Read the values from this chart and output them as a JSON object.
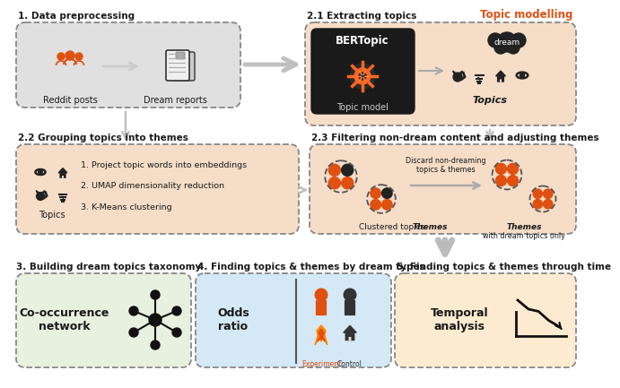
{
  "bg_color": "#ffffff",
  "peach_box_color": "#f5ddc8",
  "gray_box_color": "#e0e0e0",
  "green_box_color": "#e8f0e0",
  "blue_box_color": "#d4e8f5",
  "yellow_box_color": "#fcebd0",
  "orange_color": "#e05010",
  "dark_color": "#1a1a1a",
  "arrow_gray": "#aaaaaa",
  "text_black": "#111111",
  "border_gray": "#888888",
  "s1_label": "1. Data preprocessing",
  "s21_label": "2.1 Extracting topics",
  "topic_mod_label": "Topic modelling",
  "s22_label": "2.2 Grouping topics into themes",
  "s23_label": "2.3 Filtering non-dream content and adjusting themes",
  "s3_label": "3. Building dream topics taxonomy",
  "s4_label": "4. Finding topics & themes by dream types",
  "s5_label": "5. Finding topics & themes through time",
  "reddit_label": "Reddit posts",
  "dream_rep_label": "Dream reports",
  "bertopic_label": "BERTopic",
  "topic_model_label": "Topic model",
  "topics_italic": "Topics",
  "dream_word": "dream",
  "step1": "1. Project topic words into embeddings",
  "step2": "2. UMAP dimensionality reduction",
  "step3": "3. K-Means clustering",
  "topics_lbl": "Topics",
  "clustered_lbl": "Clustered topics: ",
  "themes_bold": "Themes",
  "discard_lbl": "Discard non-dreaming\ntopics & themes",
  "themes_only_lbl": "Themes with dream topics only",
  "cooccurrence_lbl": "Co-occurrence\nnetwork",
  "odds_ratio_lbl": "Odds\nratio",
  "experiment_lbl": "Experiment",
  "control_lbl": "Control",
  "temporal_lbl": "Temporal\nanalysis"
}
